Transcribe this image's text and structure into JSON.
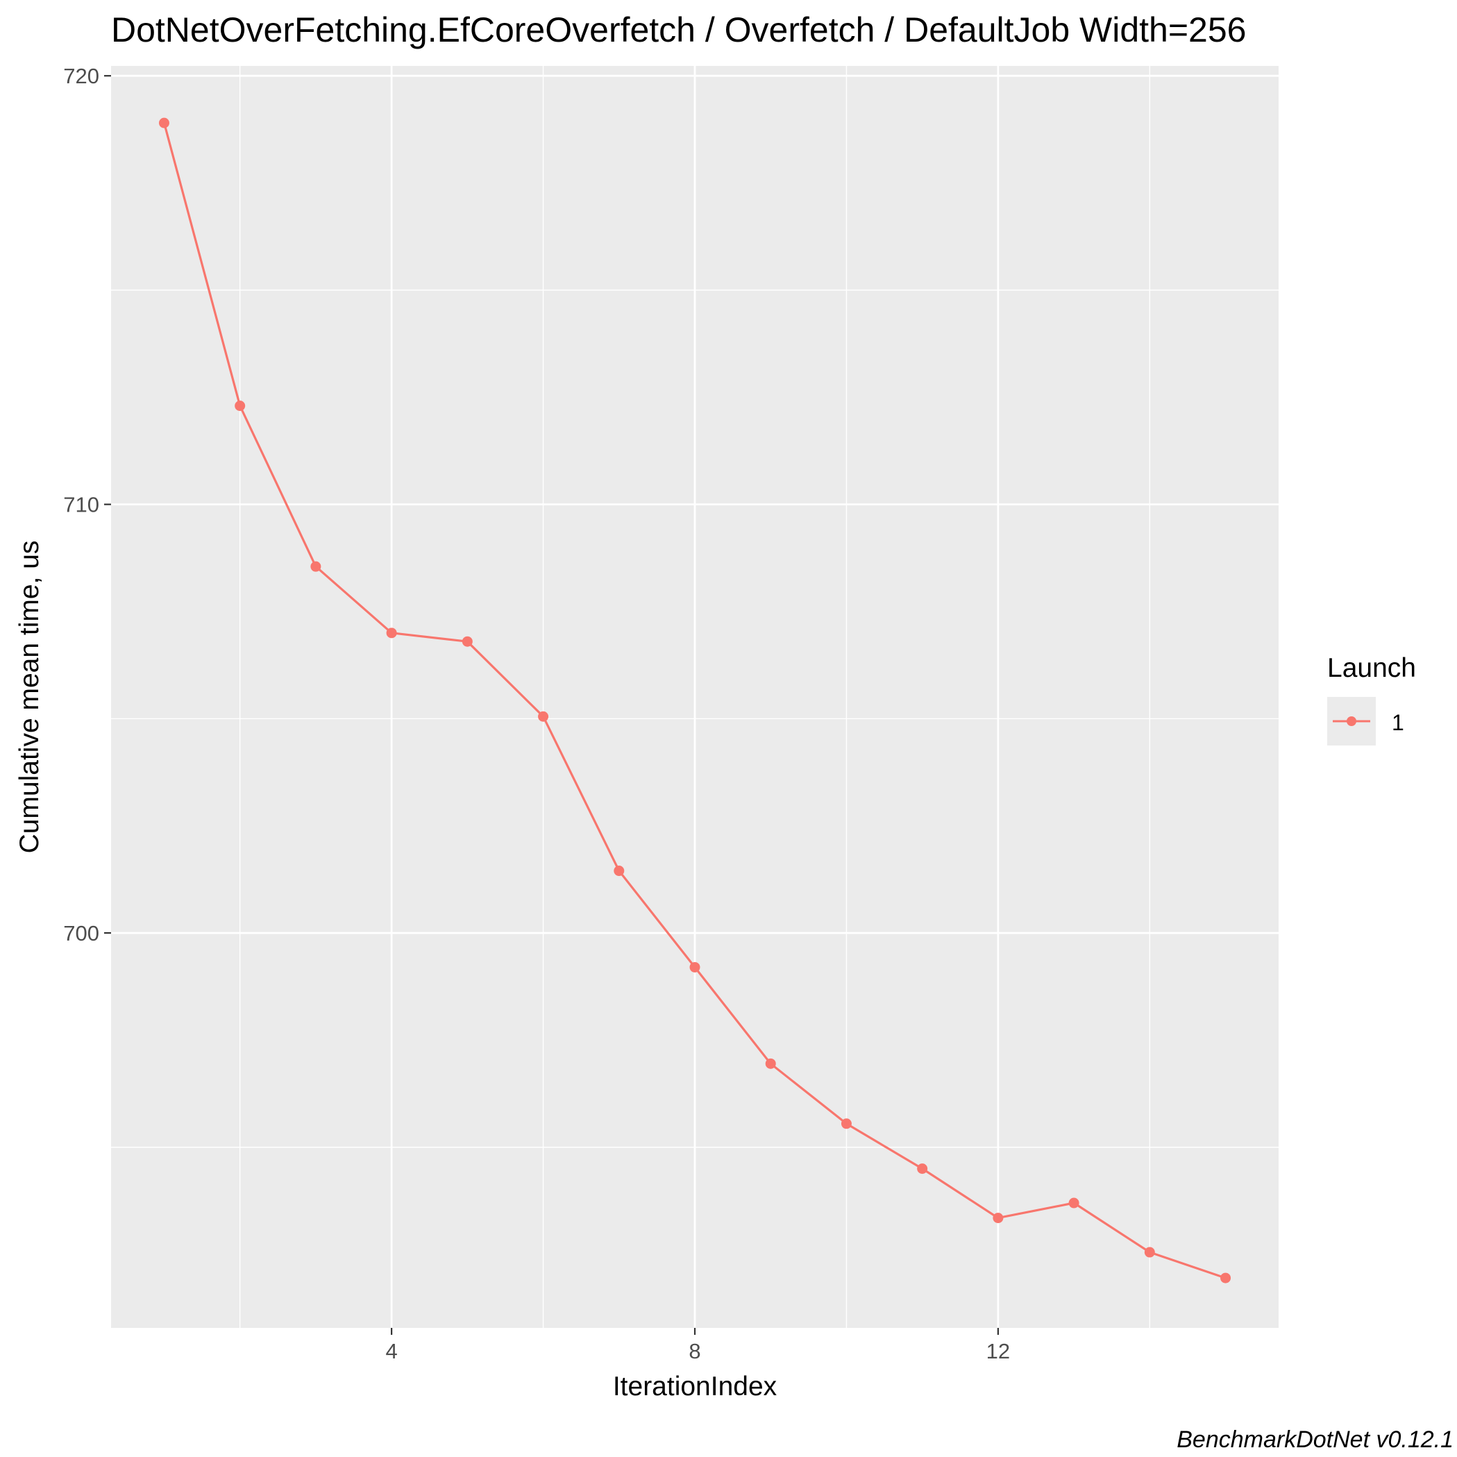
{
  "chart_data": {
    "type": "line",
    "title": "DotNetOverFetching.EfCoreOverfetch / Overfetch / DefaultJob Width=256",
    "xlabel": "IterationIndex",
    "ylabel": "Cumulative mean time, us",
    "caption": "BenchmarkDotNet v0.12.1",
    "xlim": [
      0.3,
      15.7
    ],
    "ylim": [
      690.785,
      720.23
    ],
    "x_ticks": [
      4,
      8,
      12
    ],
    "x_tick_labels": [
      "4",
      "8",
      "12"
    ],
    "y_ticks": [
      700,
      710,
      720
    ],
    "y_tick_labels": [
      "700",
      "710",
      "720"
    ],
    "x_minor_ticks": [
      2,
      6,
      10,
      14
    ],
    "y_minor_ticks": [
      695,
      705,
      715
    ],
    "grid": true,
    "legend": {
      "title": "Launch",
      "position": "right"
    },
    "series": [
      {
        "name": "1",
        "color": "#F8766D",
        "x": [
          1,
          2,
          3,
          4,
          5,
          6,
          7,
          8,
          9,
          10,
          11,
          12,
          13,
          14,
          15
        ],
        "y": [
          718.9,
          712.3,
          708.55,
          707.0,
          706.8,
          705.05,
          701.45,
          699.2,
          696.95,
          695.55,
          694.5,
          693.35,
          693.7,
          692.55,
          691.95
        ]
      }
    ]
  }
}
